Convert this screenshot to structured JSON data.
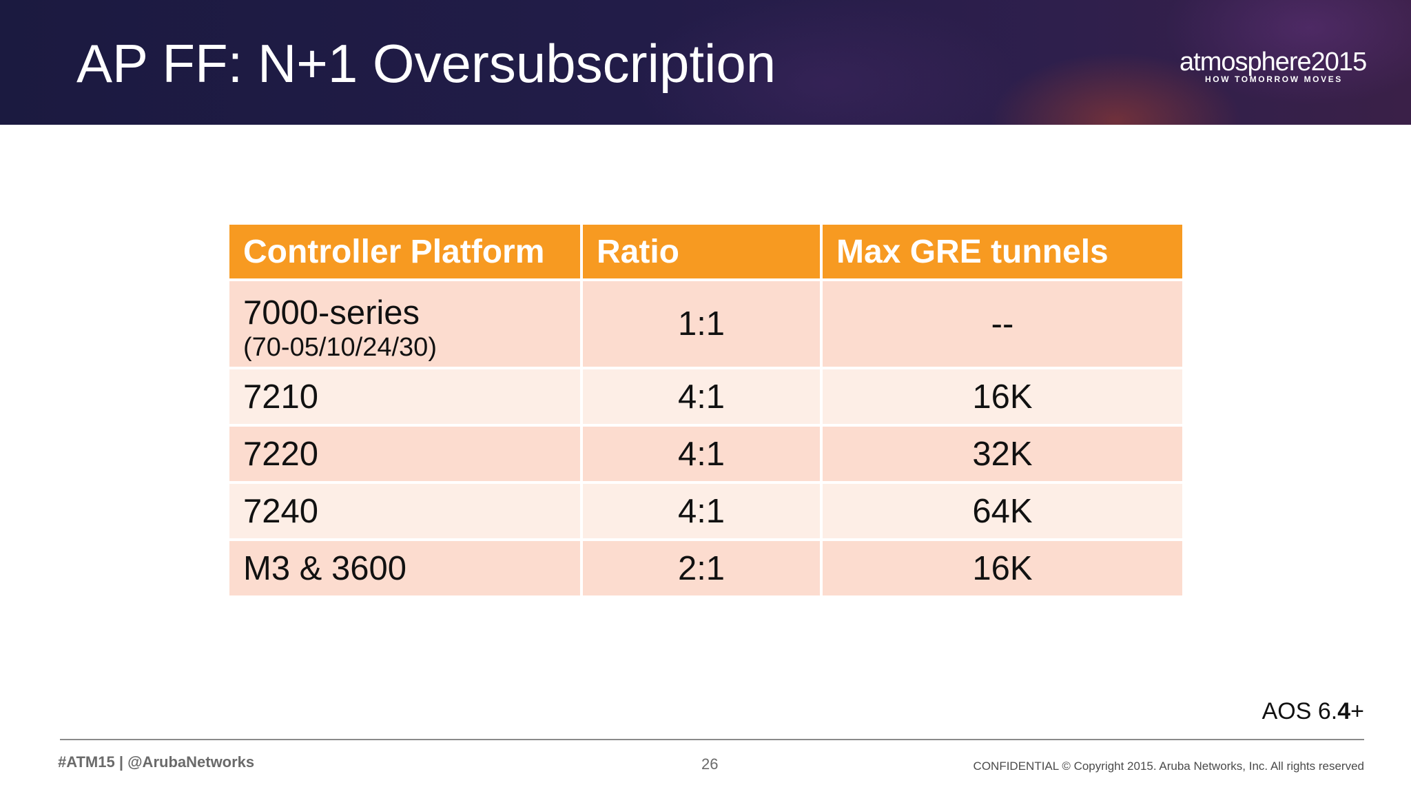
{
  "header": {
    "title": "AP FF: N+1 Oversubscription",
    "logo_word": "atmosphere2015",
    "logo_tagline": "HOW TOMORROW MOVES"
  },
  "table": {
    "headers": [
      "Controller Platform",
      "Ratio",
      "Max GRE tunnels"
    ],
    "rows": [
      {
        "platform": "7000-series",
        "platform_sub": "(70-05/10/24/30)",
        "ratio": "1:1",
        "max_gre": "--"
      },
      {
        "platform": "7210",
        "ratio": "4:1",
        "max_gre": "16K"
      },
      {
        "platform": "7220",
        "ratio": "4:1",
        "max_gre": "32K"
      },
      {
        "platform": "7240",
        "ratio": "4:1",
        "max_gre": "64K"
      },
      {
        "platform": "M3 & 3600",
        "ratio": "2:1",
        "max_gre": "16K"
      }
    ]
  },
  "note": {
    "prefix": "AOS 6.",
    "bold": "4",
    "suffix": "+"
  },
  "footer": {
    "hashtag": "#ATM15 | @ArubaNetworks",
    "page_number": "26",
    "confidential": "CONFIDENTIAL © Copyright 2015. Aruba Networks, Inc. All rights reserved"
  },
  "colors": {
    "header_bg": "#221c48",
    "table_header": "#f79a21",
    "row_dark": "#fcdccf",
    "row_light": "#fdeee6"
  }
}
